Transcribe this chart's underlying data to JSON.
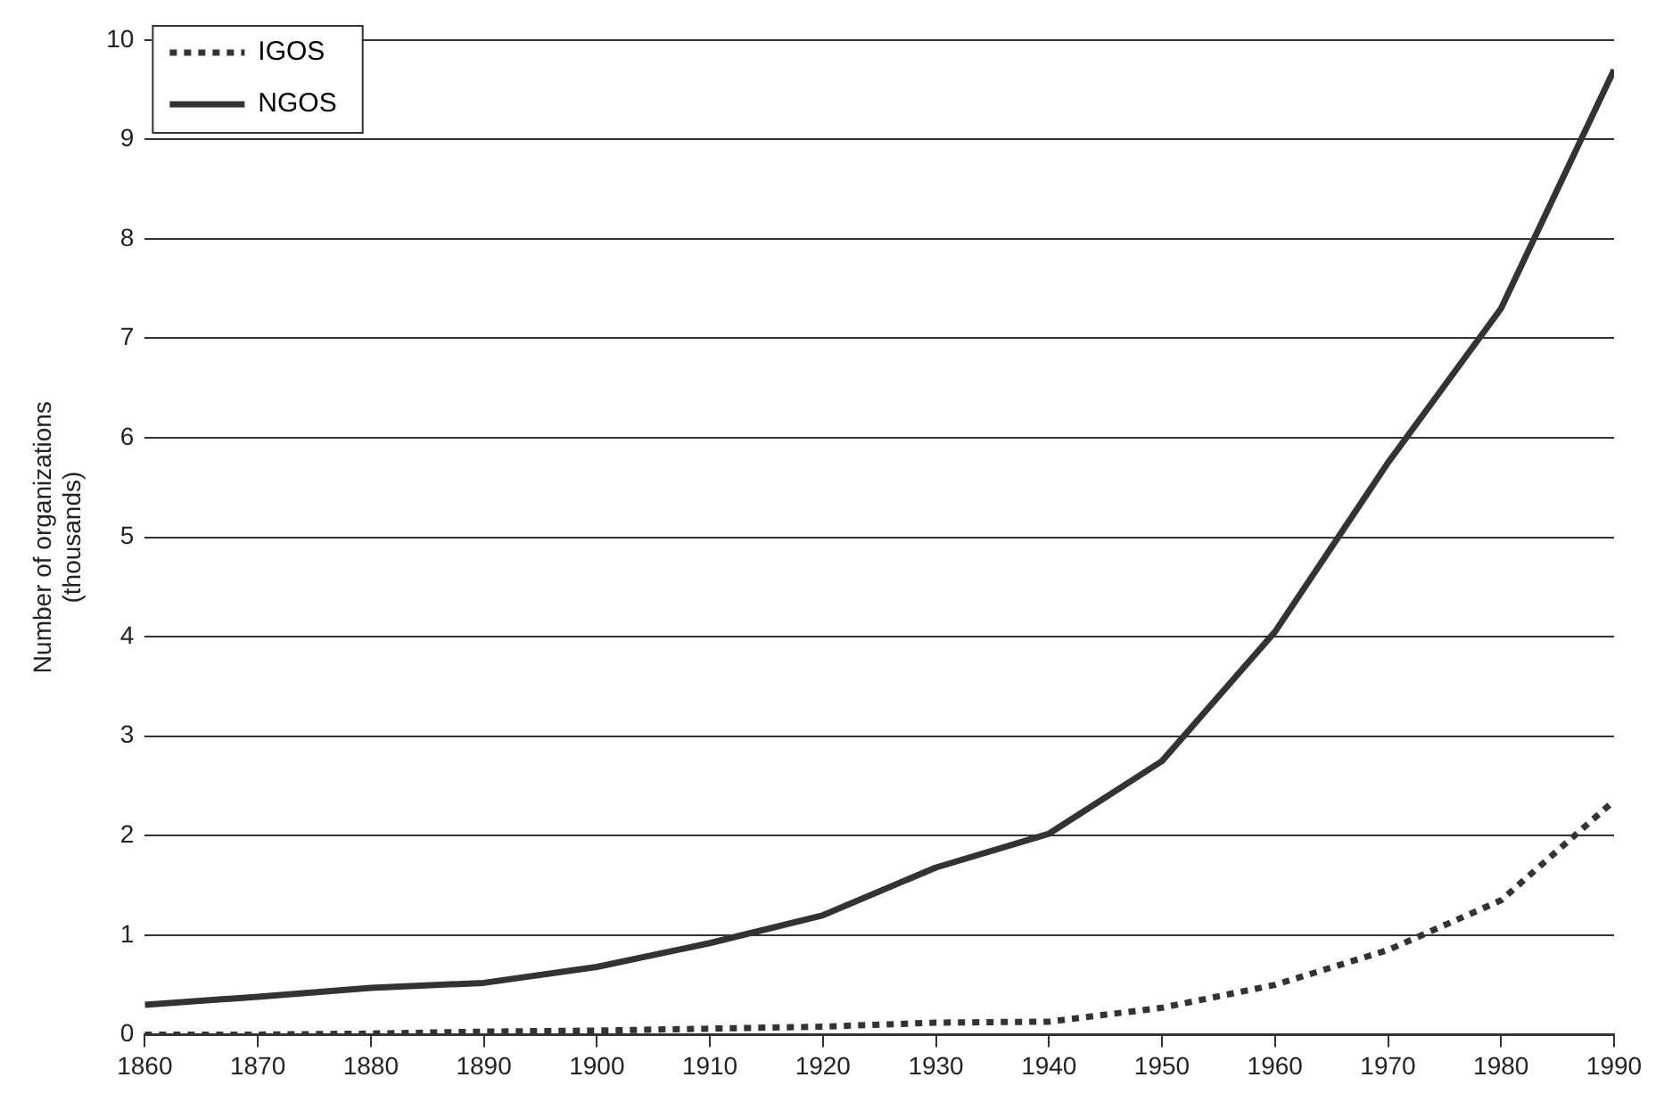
{
  "chart_data": {
    "type": "line",
    "ylabel": "Number of organizations (thousands)",
    "x": [
      1860,
      1870,
      1880,
      1890,
      1900,
      1910,
      1920,
      1930,
      1940,
      1950,
      1960,
      1970,
      1980,
      1990
    ],
    "series": [
      {
        "name": "IGOS",
        "color": "#333333",
        "line_style": "dotted",
        "values": [
          0,
          0,
          0.01,
          0.03,
          0.04,
          0.06,
          0.08,
          0.12,
          0.13,
          0.27,
          0.5,
          0.85,
          1.35,
          2.35
        ]
      },
      {
        "name": "NGOS",
        "color": "#333333",
        "line_style": "solid",
        "values": [
          0.3,
          0.38,
          0.47,
          0.52,
          0.68,
          0.92,
          1.2,
          1.68,
          2.02,
          2.75,
          4.05,
          5.75,
          7.3,
          9.7
        ]
      }
    ],
    "xlim": [
      1860,
      1990
    ],
    "xticks": [
      1860,
      1870,
      1880,
      1890,
      1900,
      1910,
      1920,
      1930,
      1940,
      1950,
      1960,
      1970,
      1980,
      1990
    ],
    "ylim": [
      0,
      10
    ],
    "yticks": [
      0,
      1,
      2,
      3,
      4,
      5,
      6,
      7,
      8,
      9,
      10
    ],
    "grid": "y",
    "legend": "top left",
    "marker": "none"
  }
}
